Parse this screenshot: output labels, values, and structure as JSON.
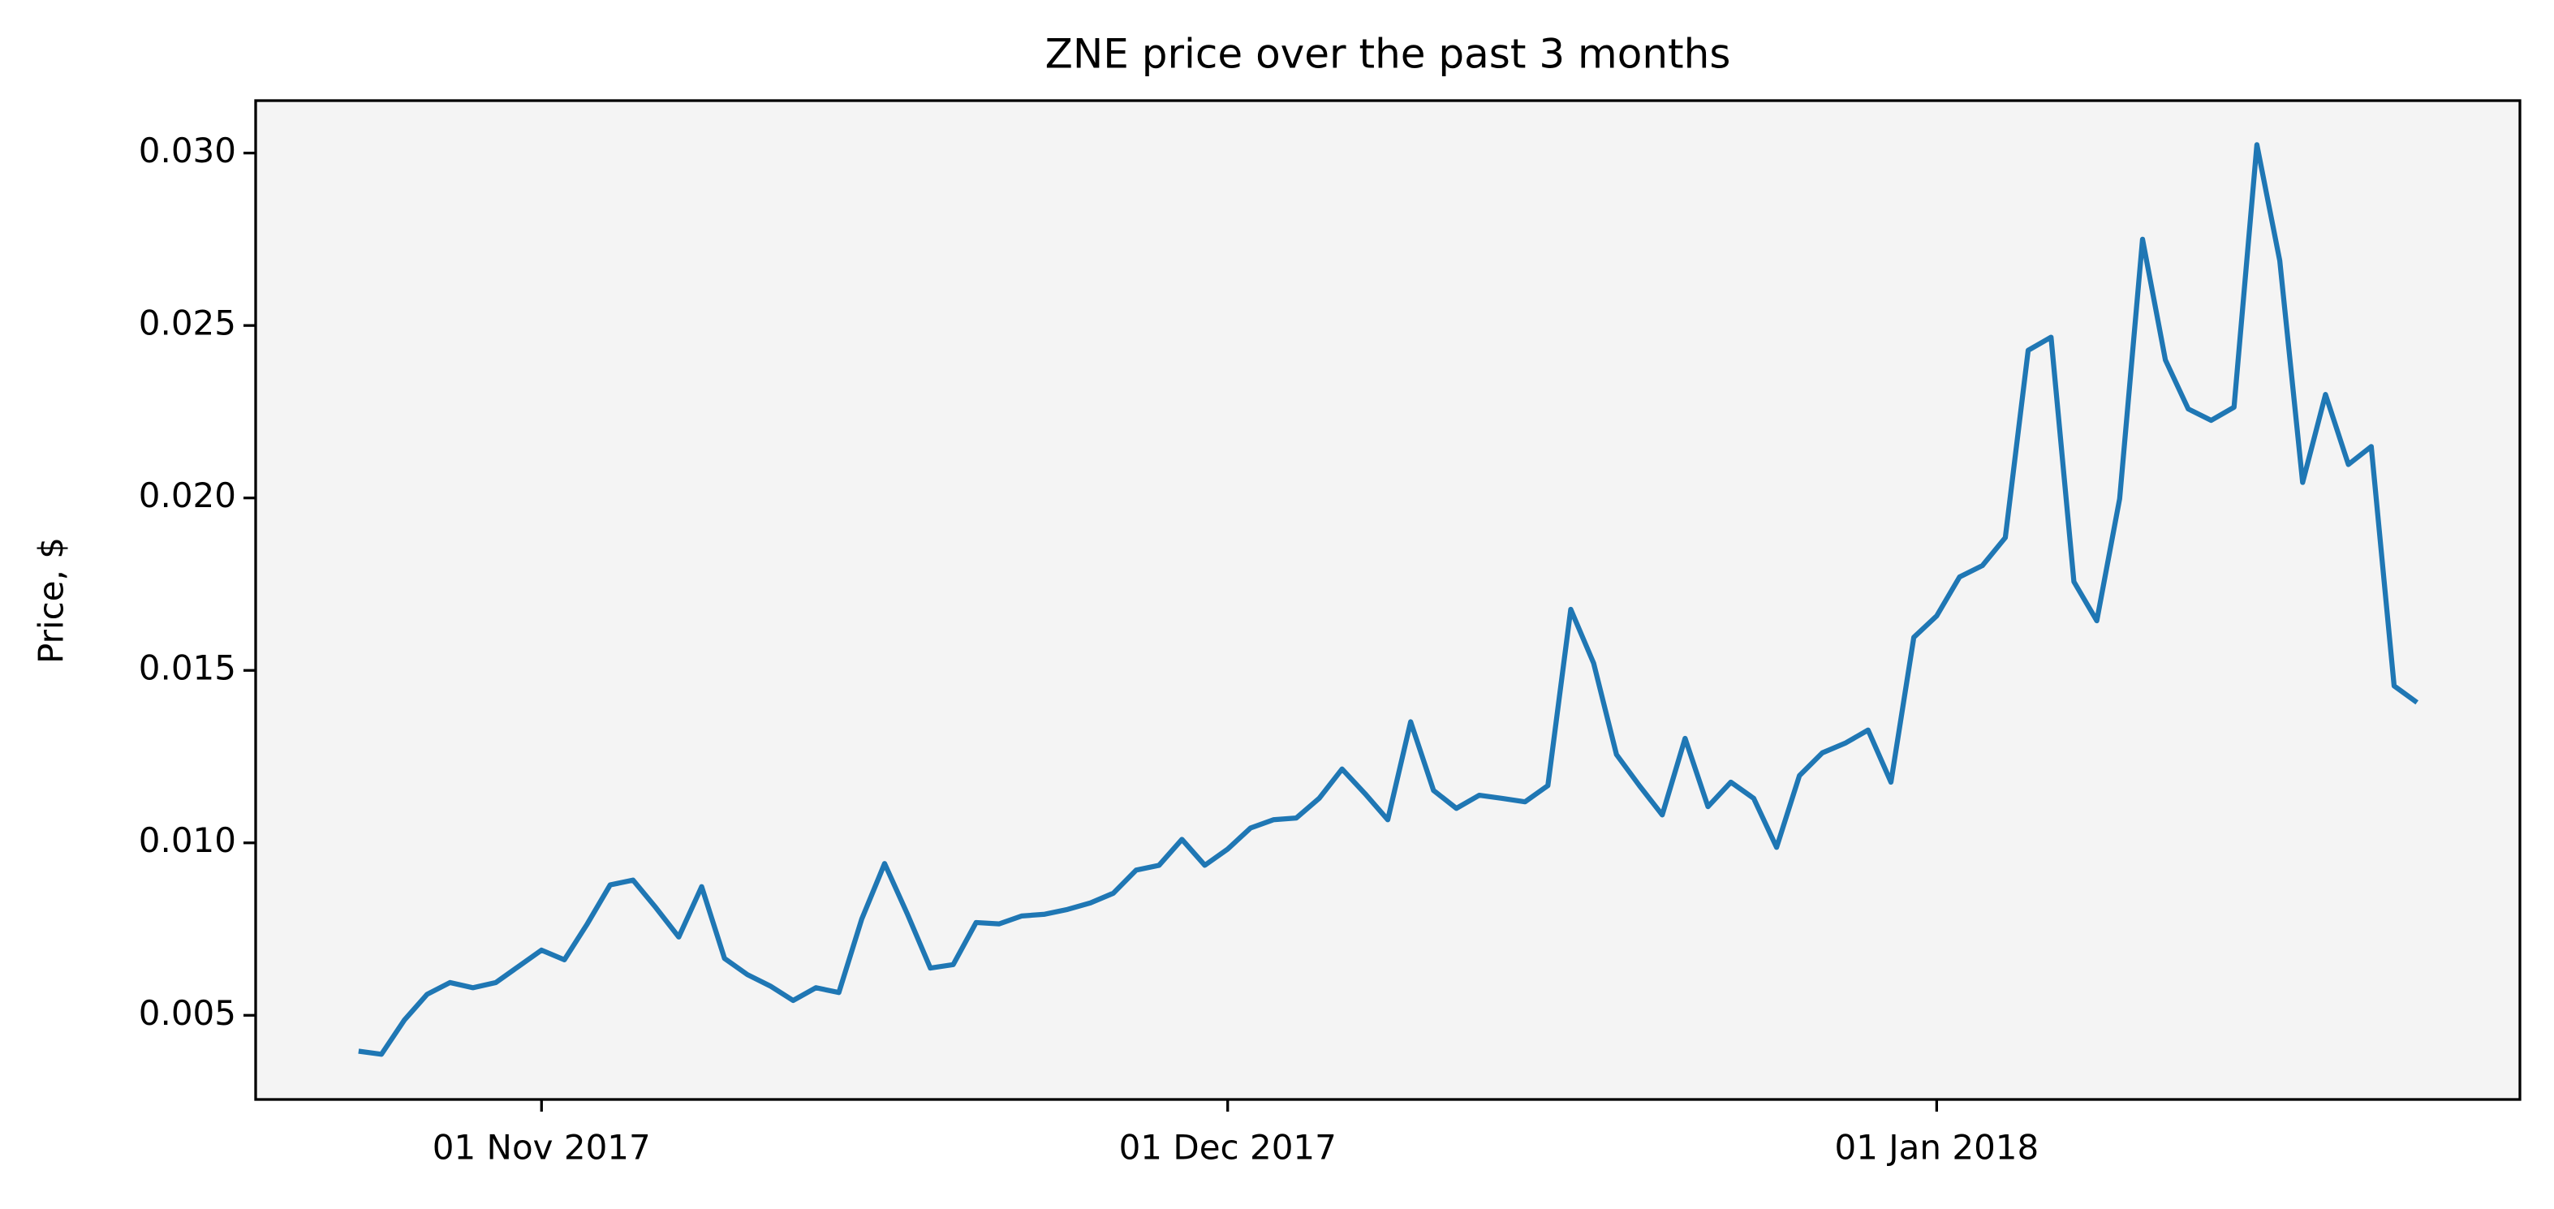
{
  "chart_data": {
    "type": "line",
    "title": "ZNE price over the past 3 months",
    "y_label": "Price, $",
    "x": [
      "2017-10-24",
      "2017-10-25",
      "2017-10-26",
      "2017-10-27",
      "2017-10-28",
      "2017-10-29",
      "2017-10-30",
      "2017-10-31",
      "2017-11-01",
      "2017-11-02",
      "2017-11-03",
      "2017-11-04",
      "2017-11-05",
      "2017-11-06",
      "2017-11-07",
      "2017-11-08",
      "2017-11-09",
      "2017-11-10",
      "2017-11-11",
      "2017-11-12",
      "2017-11-13",
      "2017-11-14",
      "2017-11-15",
      "2017-11-16",
      "2017-11-17",
      "2017-11-18",
      "2017-11-19",
      "2017-11-20",
      "2017-11-21",
      "2017-11-22",
      "2017-11-23",
      "2017-11-24",
      "2017-11-25",
      "2017-11-26",
      "2017-11-27",
      "2017-11-28",
      "2017-11-29",
      "2017-11-30",
      "2017-12-01",
      "2017-12-02",
      "2017-12-03",
      "2017-12-04",
      "2017-12-05",
      "2017-12-06",
      "2017-12-07",
      "2017-12-08",
      "2017-12-09",
      "2017-12-10",
      "2017-12-11",
      "2017-12-12",
      "2017-12-13",
      "2017-12-14",
      "2017-12-15",
      "2017-12-16",
      "2017-12-17",
      "2017-12-18",
      "2017-12-19",
      "2017-12-20",
      "2017-12-21",
      "2017-12-22",
      "2017-12-23",
      "2017-12-24",
      "2017-12-25",
      "2017-12-26",
      "2017-12-27",
      "2017-12-28",
      "2017-12-29",
      "2017-12-30",
      "2017-12-31",
      "2018-01-01",
      "2018-01-02",
      "2018-01-03",
      "2018-01-04",
      "2018-01-05",
      "2018-01-06",
      "2018-01-07",
      "2018-01-08",
      "2018-01-09",
      "2018-01-10",
      "2018-01-11",
      "2018-01-12",
      "2018-01-13",
      "2018-01-14",
      "2018-01-15",
      "2018-01-16",
      "2018-01-17",
      "2018-01-18",
      "2018-01-19",
      "2018-01-20",
      "2018-01-21",
      "2018-01-22"
    ],
    "series": [
      {
        "color": "#1f77b4",
        "values": [
          0.00396,
          0.00387,
          0.00486,
          0.00561,
          0.00595,
          0.0058,
          0.00595,
          0.00642,
          0.00689,
          0.00661,
          0.00765,
          0.00878,
          0.00892,
          0.00812,
          0.00727,
          0.00873,
          0.00665,
          0.00618,
          0.00585,
          0.00543,
          0.0058,
          0.00566,
          0.00779,
          0.0094,
          0.00793,
          0.00637,
          0.00647,
          0.00769,
          0.00765,
          0.00788,
          0.00793,
          0.00807,
          0.00826,
          0.00854,
          0.00921,
          0.00935,
          0.0101,
          0.00935,
          0.00982,
          0.01043,
          0.01067,
          0.01072,
          0.01129,
          0.01214,
          0.01143,
          0.01067,
          0.01351,
          0.01152,
          0.011,
          0.01138,
          0.01129,
          0.01119,
          0.01166,
          0.01677,
          0.01521,
          0.01256,
          0.01166,
          0.01081,
          0.01303,
          0.01105,
          0.01176,
          0.01129,
          0.00987,
          0.01195,
          0.01261,
          0.01289,
          0.01327,
          0.01176,
          0.01596,
          0.01658,
          0.01771,
          0.01804,
          0.01885,
          0.02428,
          0.02466,
          0.01757,
          0.01644,
          0.01998,
          0.0275,
          0.024,
          0.02258,
          0.02225,
          0.02263,
          0.03024,
          0.02688,
          0.02045,
          0.023,
          0.02097,
          0.02149,
          0.01455,
          0.01407
        ]
      }
    ],
    "xlim": [
      "2017-10-19T12:00",
      "2018-01-26T12:00"
    ],
    "xticks": [
      {
        "value": "2017-11-01",
        "label": "01 Nov 2017"
      },
      {
        "value": "2017-12-01",
        "label": "01 Dec 2017"
      },
      {
        "value": "2018-01-01",
        "label": "01 Jan 2018"
      }
    ],
    "ylim": [
      0.00256,
      0.03152
    ],
    "yticks": [
      0.005,
      {
        "value": 0.01,
        "label": "0.010"
      },
      0.015,
      {
        "value": 0.02,
        "label": "0.020"
      },
      0.025,
      {
        "value": 0.03,
        "label": "0.030"
      }
    ],
    "background": "#f4f4f4"
  }
}
